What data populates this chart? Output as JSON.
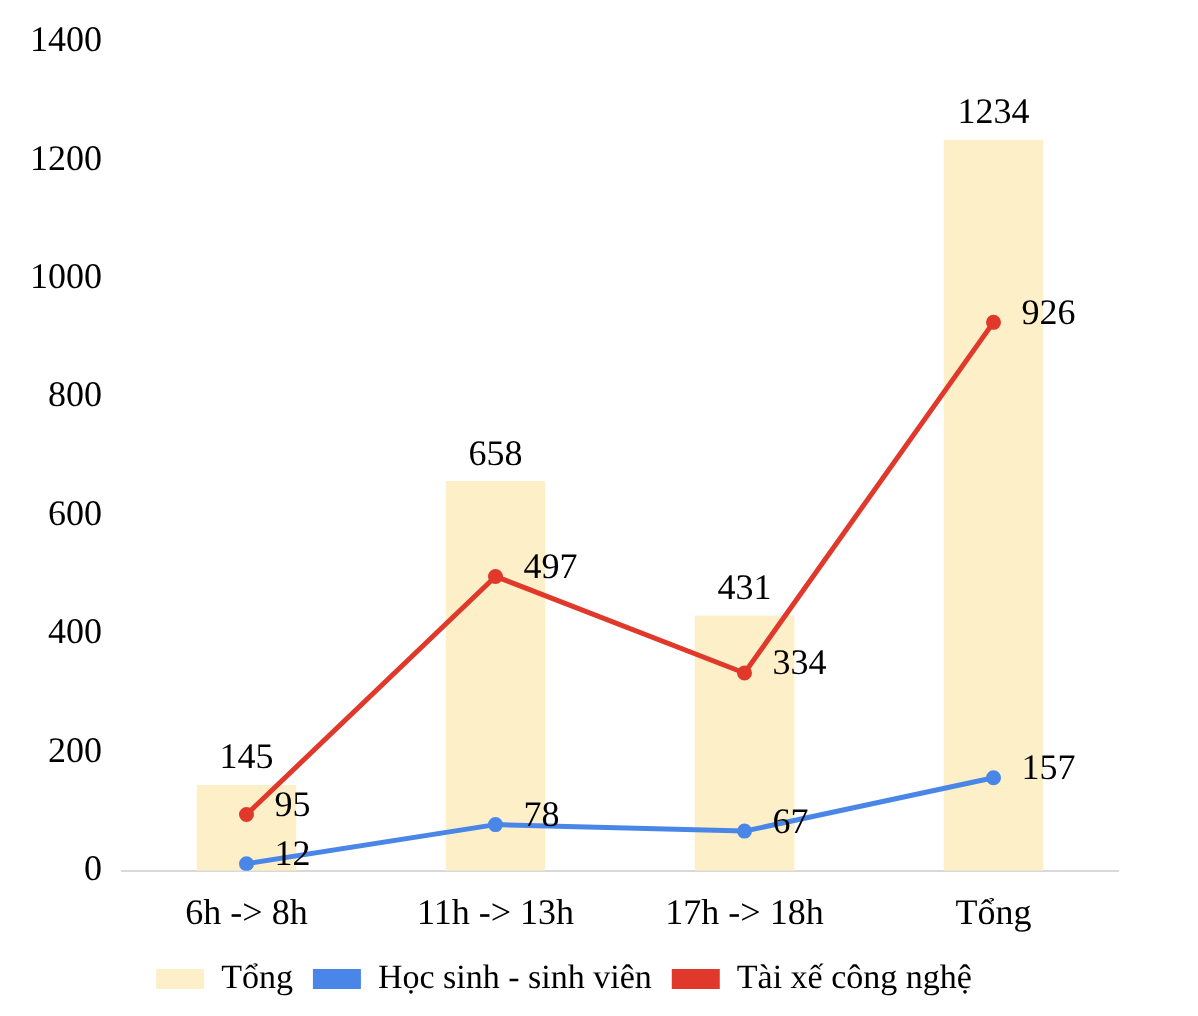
{
  "chart_data": {
    "type": "bar",
    "categories": [
      "6h -> 8h",
      "11h -> 13h",
      "17h -> 18h",
      "Tổng"
    ],
    "series": [
      {
        "name": "Tổng",
        "color": "#fdf0c8",
        "values": [
          145,
          658,
          431,
          1234
        ]
      },
      {
        "name": "Học sinh - sinh viên",
        "type": "line",
        "color": "#4a86e8",
        "values": [
          12,
          78,
          67,
          157
        ]
      },
      {
        "name": "Tài xế công nghệ",
        "type": "line",
        "color": "#e0392b",
        "values": [
          95,
          497,
          334,
          926
        ]
      }
    ],
    "ylim": [
      0,
      1400
    ],
    "yticks": [
      0,
      200,
      400,
      600,
      800,
      1000,
      1200,
      1400
    ],
    "grid": false,
    "legend": "bottom",
    "data_labels": true,
    "marker": "circle"
  }
}
